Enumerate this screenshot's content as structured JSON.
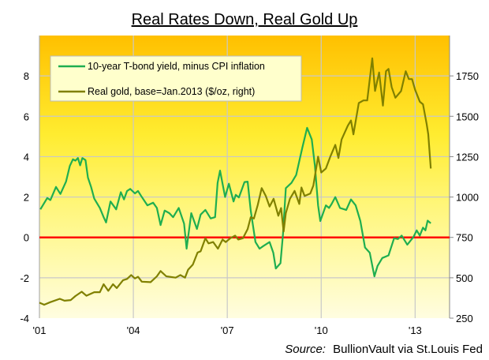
{
  "chart_data": {
    "type": "line",
    "title": "Real Rates Down, Real Gold Up",
    "source_label": "Source:",
    "source_text": "BullionVault via St.Louis Fed",
    "xlim": [
      2001,
      2014.1
    ],
    "ylim": [
      -4,
      10
    ],
    "y2lim": [
      250,
      2000
    ],
    "x_ticks": [
      {
        "v": 2001,
        "label": "'01"
      },
      {
        "v": 2004,
        "label": "'04"
      },
      {
        "v": 2007,
        "label": "'07"
      },
      {
        "v": 2010,
        "label": "'10"
      },
      {
        "v": 2013,
        "label": "'13"
      }
    ],
    "y_ticks": [
      {
        "v": -4,
        "label": "-4"
      },
      {
        "v": -2,
        "label": "-2"
      },
      {
        "v": 0,
        "label": "0"
      },
      {
        "v": 2,
        "label": "2"
      },
      {
        "v": 4,
        "label": "4"
      },
      {
        "v": 6,
        "label": "6"
      },
      {
        "v": 8,
        "label": "8"
      }
    ],
    "y2_ticks": [
      {
        "v": 250,
        "label": "250"
      },
      {
        "v": 500,
        "label": "500"
      },
      {
        "v": 750,
        "label": "750"
      },
      {
        "v": 1000,
        "label": "1000"
      },
      {
        "v": 1250,
        "label": "1250"
      },
      {
        "v": 1500,
        "label": "1500"
      },
      {
        "v": 1750,
        "label": "1750"
      }
    ],
    "grid": true,
    "legend_position": "top-left",
    "reference_line": {
      "value": 0,
      "color": "#ff0000"
    },
    "series": [
      {
        "name": "10-year T-bond yield, minus CPI inflation",
        "axis": "left",
        "color": "#1fae50",
        "x": [
          2001.03,
          2001.25,
          2001.35,
          2001.53,
          2001.67,
          2001.85,
          2001.97,
          2002.07,
          2002.15,
          2002.23,
          2002.3,
          2002.37,
          2002.47,
          2002.55,
          2002.65,
          2002.75,
          2002.93,
          2003.05,
          2003.13,
          2003.27,
          2003.45,
          2003.6,
          2003.7,
          2003.8,
          2003.9,
          2004.05,
          2004.15,
          2004.25,
          2004.45,
          2004.63,
          2004.75,
          2004.87,
          2005.0,
          2005.15,
          2005.27,
          2005.45,
          2005.62,
          2005.7,
          2005.85,
          2006.03,
          2006.15,
          2006.3,
          2006.47,
          2006.61,
          2006.69,
          2006.77,
          2006.93,
          2007.05,
          2007.2,
          2007.27,
          2007.37,
          2007.55,
          2007.65,
          2007.75,
          2007.9,
          2008.03,
          2008.15,
          2008.35,
          2008.47,
          2008.55,
          2008.7,
          2008.78,
          2008.87,
          2009.05,
          2009.2,
          2009.4,
          2009.55,
          2009.7,
          2009.8,
          2009.9,
          2009.97,
          2010.15,
          2010.25,
          2010.33,
          2010.45,
          2010.6,
          2010.8,
          2010.95,
          2011.1,
          2011.25,
          2011.4,
          2011.55,
          2011.7,
          2011.8,
          2011.95,
          2012.15,
          2012.33,
          2012.45,
          2012.57,
          2012.75,
          2012.95,
          2013.05,
          2013.15,
          2013.25,
          2013.33,
          2013.4,
          2013.5
        ],
        "y": [
          1.39,
          1.95,
          1.85,
          2.5,
          2.15,
          2.76,
          3.54,
          3.87,
          3.8,
          3.93,
          3.57,
          3.93,
          3.83,
          2.96,
          2.5,
          1.92,
          1.46,
          1.0,
          0.74,
          1.78,
          1.39,
          2.24,
          1.88,
          2.3,
          2.4,
          2.18,
          2.3,
          2.05,
          1.59,
          1.72,
          1.46,
          0.61,
          1.33,
          1.2,
          1.0,
          1.46,
          0.68,
          -0.56,
          1.2,
          0.42,
          1.13,
          1.36,
          0.94,
          1.0,
          2.7,
          3.31,
          2.0,
          2.66,
          1.78,
          2.11,
          1.98,
          2.74,
          2.76,
          1.33,
          -0.23,
          -0.56,
          -0.43,
          -0.23,
          -0.76,
          -1.54,
          -1.28,
          0.16,
          2.44,
          2.7,
          3.09,
          4.46,
          5.43,
          4.85,
          3.54,
          1.59,
          0.81,
          1.59,
          1.46,
          1.65,
          2.0,
          1.46,
          1.36,
          1.88,
          1.59,
          0.81,
          -0.5,
          -0.76,
          -1.93,
          -1.41,
          -1.02,
          -0.89,
          -0.04,
          -0.08,
          0.09,
          -0.36,
          0.03,
          0.35,
          0.09,
          0.48,
          0.35,
          0.83,
          0.7
        ]
      },
      {
        "name": "Real gold, base=Jan.2013 ($/oz, right)",
        "axis": "right",
        "color": "#808000",
        "x": [
          2001.0,
          2001.15,
          2001.35,
          2001.65,
          2001.8,
          2002.0,
          2002.15,
          2002.35,
          2002.5,
          2002.75,
          2002.93,
          2003.05,
          2003.2,
          2003.35,
          2003.47,
          2003.67,
          2003.8,
          2003.93,
          2004.05,
          2004.15,
          2004.27,
          2004.55,
          2004.75,
          2004.87,
          2005.05,
          2005.35,
          2005.5,
          2005.65,
          2005.75,
          2005.9,
          2006.05,
          2006.15,
          2006.3,
          2006.4,
          2006.55,
          2006.7,
          2006.85,
          2006.95,
          2007.1,
          2007.25,
          2007.35,
          2007.5,
          2007.65,
          2007.75,
          2007.85,
          2007.97,
          2008.1,
          2008.23,
          2008.35,
          2008.48,
          2008.63,
          2008.72,
          2008.8,
          2008.87,
          2009.0,
          2009.15,
          2009.3,
          2009.37,
          2009.47,
          2009.65,
          2009.75,
          2009.9,
          2010.0,
          2010.15,
          2010.3,
          2010.45,
          2010.55,
          2010.65,
          2010.85,
          2010.95,
          2011.03,
          2011.2,
          2011.35,
          2011.47,
          2011.63,
          2011.72,
          2011.85,
          2011.97,
          2012.07,
          2012.15,
          2012.25,
          2012.37,
          2012.55,
          2012.7,
          2012.8,
          2012.9,
          2013.0,
          2013.15,
          2013.25,
          2013.37,
          2013.42,
          2013.5
        ],
        "y": [
          346,
          333,
          349,
          370,
          358,
          362,
          387,
          414,
          389,
          411,
          411,
          460,
          419,
          460,
          436,
          485,
          493,
          517,
          496,
          506,
          476,
          473,
          509,
          542,
          509,
          501,
          517,
          501,
          550,
          582,
          656,
          664,
          745,
          713,
          721,
          680,
          737,
          721,
          745,
          761,
          737,
          745,
          802,
          875,
          867,
          949,
          1055,
          1006,
          941,
          989,
          884,
          932,
          786,
          900,
          989,
          1038,
          957,
          1059,
          1006,
          1022,
          1071,
          1250,
          1152,
          1177,
          1255,
          1323,
          1242,
          1356,
          1442,
          1474,
          1388,
          1582,
          1598,
          1598,
          1859,
          1657,
          1771,
          1566,
          1779,
          1793,
          1681,
          1615,
          1656,
          1779,
          1730,
          1730,
          1664,
          1590,
          1574,
          1451,
          1388,
          1177
        ]
      }
    ]
  }
}
